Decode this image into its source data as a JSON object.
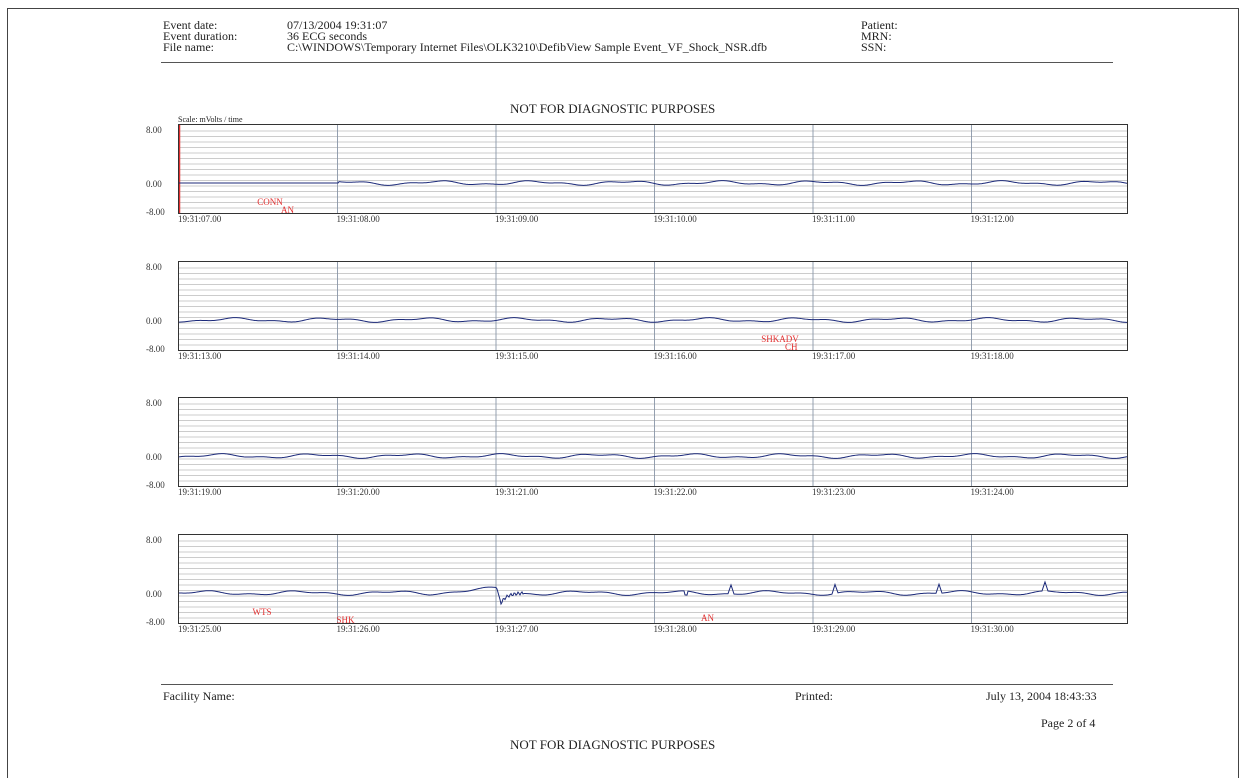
{
  "header": {
    "labels": [
      "Event date:",
      "Event duration:",
      "File name:"
    ],
    "values": [
      "07/13/2004  19:31:07",
      "36 ECG seconds",
      "C:\\WINDOWS\\Temporary Internet Files\\OLK3210\\DefibView Sample Event_VF_Shock_NSR.dfb"
    ],
    "patient_labels": [
      "Patient:",
      "MRN:",
      "SSN:"
    ]
  },
  "warning": "NOT FOR DIAGNOSTIC PURPOSES",
  "scale_label": "Scale: mVolts / time",
  "y_labels": {
    "top": "8.00",
    "mid": "0.00",
    "bottom": "-8.00"
  },
  "colors": {
    "trace": "#1c2a7a",
    "annotation": "#e23030",
    "grid": "#9a9a9a",
    "major_grid": "#8a96a8"
  },
  "strips": [
    {
      "times": [
        "19:31:07.00",
        "19:31:08.00",
        "19:31:09.00",
        "19:31:10.00",
        "19:31:11.00",
        "19:31:12.00"
      ],
      "annotations": [
        {
          "text": "CONN",
          "t": 0.5
        },
        {
          "text": "AN",
          "t": 0.65
        }
      ]
    },
    {
      "times": [
        "19:31:13.00",
        "19:31:14.00",
        "19:31:15.00",
        "19:31:16.00",
        "19:31:17.00",
        "19:31:18.00"
      ],
      "annotations": [
        {
          "text": "SHKADV",
          "t": 3.68
        },
        {
          "text": "CH",
          "t": 3.83
        }
      ]
    },
    {
      "times": [
        "19:31:19.00",
        "19:31:20.00",
        "19:31:21.00",
        "19:31:22.00",
        "19:31:23.00",
        "19:31:24.00"
      ],
      "annotations": []
    },
    {
      "times": [
        "19:31:25.00",
        "19:31:26.00",
        "19:31:27.00",
        "19:31:28.00",
        "19:31:29.00",
        "19:31:30.00"
      ],
      "annotations": [
        {
          "text": "WTS",
          "t": 0.47
        },
        {
          "text": "SHK",
          "t": 1.0
        },
        {
          "text": "AN",
          "t": 3.3
        }
      ]
    }
  ],
  "footer": {
    "facility_label": "Facility Name:",
    "printed_label": "Printed:",
    "printed_value": "July 13, 2004  18:43:33",
    "page": "Page 2 of 4",
    "warning": "NOT FOR DIAGNOSTIC PURPOSES"
  }
}
